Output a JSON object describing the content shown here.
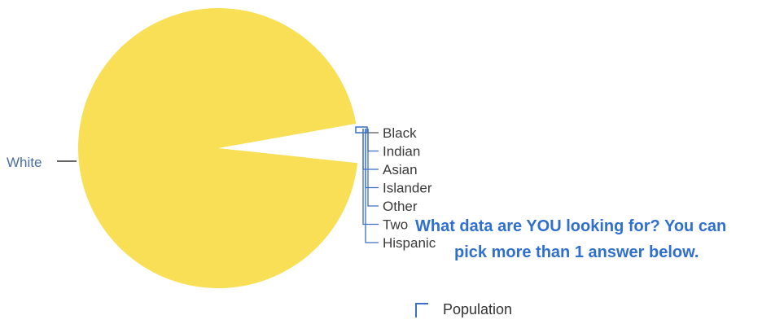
{
  "chart_data": {
    "type": "pie",
    "title": "",
    "categories": [
      "White",
      "Black",
      "Indian",
      "Asian",
      "Islander",
      "Other",
      "Two",
      "Hispanic"
    ],
    "values": [
      95.5,
      1.5,
      0.5,
      0.8,
      0.2,
      0.4,
      0.6,
      0.5
    ],
    "colors": {
      "pie_fill": "#f8df55",
      "gap": "#ffffff",
      "leader_blue": "#3b6fc4"
    }
  },
  "question": {
    "line1": "What data are YOU looking for? You can",
    "line2": "pick more than 1 answer below."
  },
  "options": [
    {
      "label": "Population"
    }
  ]
}
